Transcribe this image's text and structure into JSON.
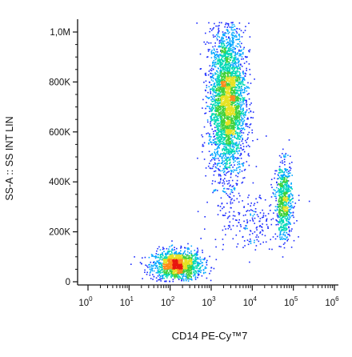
{
  "chart_data": {
    "type": "scatter",
    "plot_style": "flow cytometry density dot plot (blue low to red high density)",
    "xlabel": "CD14 PE-Cy™7",
    "ylabel": "SS-A :: SS INT LIN",
    "x_scale": "log",
    "xlim": [
      1,
      1000000
    ],
    "ylim": [
      0,
      1050000
    ],
    "x_ticks": [
      {
        "base": "10",
        "exp": "0",
        "value": 1
      },
      {
        "base": "10",
        "exp": "1",
        "value": 10
      },
      {
        "base": "10",
        "exp": "2",
        "value": 100
      },
      {
        "base": "10",
        "exp": "3",
        "value": 1000
      },
      {
        "base": "10",
        "exp": "4",
        "value": 10000
      },
      {
        "base": "10",
        "exp": "5",
        "value": 100000
      },
      {
        "base": "10",
        "exp": "6",
        "value": 1000000
      }
    ],
    "y_ticks": [
      {
        "label": "0",
        "value": 0
      },
      {
        "label": "200K",
        "value": 200000
      },
      {
        "label": "400K",
        "value": 400000
      },
      {
        "label": "600K",
        "value": 600000
      },
      {
        "label": "800K",
        "value": 800000
      },
      {
        "label": "1,0M",
        "value": 1000000
      }
    ],
    "populations": [
      {
        "center_x": 150,
        "center_y": 65000,
        "spread_log_x": 0.3,
        "spread_y": 30000,
        "count": 1400
      },
      {
        "center_x": 2500,
        "center_y": 720000,
        "spread_log_x": 0.22,
        "spread_y": 150000,
        "count": 3200
      },
      {
        "center_x": 60000,
        "center_y": 320000,
        "spread_log_x": 0.1,
        "spread_y": 75000,
        "count": 700
      },
      {
        "center_x": 8000,
        "center_y": 250000,
        "spread_log_x": 0.45,
        "spread_y": 60000,
        "count": 200
      }
    ],
    "density_colors": [
      "#1a2aff",
      "#00a6ff",
      "#00d9b5",
      "#3fd13a",
      "#e7e222",
      "#ff8a1c",
      "#e8160f"
    ]
  }
}
